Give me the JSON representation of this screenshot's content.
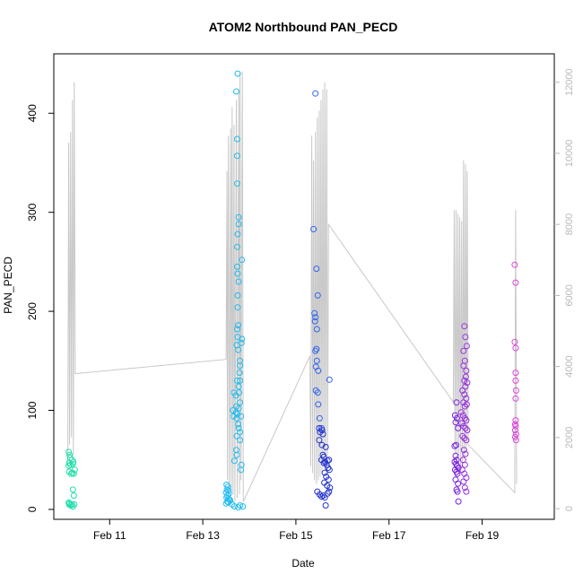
{
  "chart_data": {
    "type": "scatter",
    "title": "ATOM2 Northbound PAN_PECD",
    "xlabel": "Date",
    "ylabel": "PAN_PECD",
    "x_unit": "day (February 2017, fractional)",
    "xlim": [
      9.8,
      20.55
    ],
    "ylim": [
      -10,
      460
    ],
    "y2lim": [
      -300,
      12800
    ],
    "x_ticks": [
      {
        "value": 11,
        "label": "Feb 11"
      },
      {
        "value": 13,
        "label": "Feb 13"
      },
      {
        "value": 15,
        "label": "Feb 15"
      },
      {
        "value": 17,
        "label": "Feb 17"
      },
      {
        "value": 19,
        "label": "Feb 19"
      }
    ],
    "y_ticks": [
      0,
      100,
      200,
      300,
      400
    ],
    "y2_ticks": [
      0,
      2000,
      4000,
      6000,
      8000,
      10000,
      12000
    ],
    "grid": false,
    "legend": "none",
    "colors": {
      "axis": "#000000",
      "secondary_axis": "#b8b8b8",
      "line": "#c8c8c8"
    },
    "series": [
      {
        "color": "#22ddaa",
        "points": [
          [
            10.12,
            58
          ],
          [
            10.14,
            55
          ],
          [
            10.15,
            52
          ],
          [
            10.13,
            47
          ],
          [
            10.16,
            45
          ],
          [
            10.12,
            44
          ],
          [
            10.19,
            50
          ],
          [
            10.22,
            48
          ],
          [
            10.21,
            46
          ],
          [
            10.13,
            38
          ],
          [
            10.17,
            36
          ],
          [
            10.2,
            37
          ],
          [
            10.23,
            36
          ],
          [
            10.25,
            40
          ],
          [
            10.21,
            20
          ],
          [
            10.23,
            14
          ],
          [
            10.12,
            7
          ],
          [
            10.13,
            5
          ],
          [
            10.14,
            6
          ],
          [
            10.16,
            4
          ],
          [
            10.19,
            5
          ],
          [
            10.21,
            3
          ],
          [
            10.24,
            5
          ]
        ]
      },
      {
        "color": "#22bbee",
        "points": [
          [
            13.75,
            440
          ],
          [
            13.72,
            422
          ],
          [
            13.74,
            374
          ],
          [
            13.74,
            357
          ],
          [
            13.74,
            329
          ],
          [
            13.77,
            295
          ],
          [
            13.77,
            288
          ],
          [
            13.75,
            278
          ],
          [
            13.74,
            265
          ],
          [
            13.84,
            252
          ],
          [
            13.74,
            245
          ],
          [
            13.75,
            238
          ],
          [
            13.77,
            230
          ],
          [
            13.75,
            216
          ],
          [
            13.75,
            204
          ],
          [
            13.76,
            186
          ],
          [
            13.74,
            182
          ],
          [
            13.84,
            172
          ],
          [
            13.83,
            168
          ],
          [
            13.75,
            174
          ],
          [
            13.73,
            166
          ],
          [
            13.76,
            161
          ],
          [
            13.8,
            150
          ],
          [
            13.8,
            145
          ],
          [
            13.79,
            138
          ],
          [
            13.8,
            130
          ],
          [
            13.74,
            130
          ],
          [
            13.77,
            124
          ],
          [
            13.67,
            118
          ],
          [
            13.78,
            118
          ],
          [
            13.71,
            115
          ],
          [
            13.72,
            104
          ],
          [
            13.8,
            108
          ],
          [
            13.77,
            102
          ],
          [
            13.65,
            100
          ],
          [
            13.72,
            98
          ],
          [
            13.74,
            96
          ],
          [
            13.66,
            94
          ],
          [
            13.73,
            92
          ],
          [
            13.82,
            94
          ],
          [
            13.76,
            86
          ],
          [
            13.77,
            82
          ],
          [
            13.8,
            78
          ],
          [
            13.73,
            74
          ],
          [
            13.8,
            70
          ],
          [
            13.72,
            60
          ],
          [
            13.73,
            55
          ],
          [
            13.68,
            49
          ],
          [
            13.83,
            45
          ],
          [
            13.82,
            40
          ],
          [
            13.51,
            25
          ],
          [
            13.54,
            23
          ],
          [
            13.52,
            20
          ],
          [
            13.55,
            19
          ],
          [
            13.5,
            17
          ],
          [
            13.56,
            16
          ],
          [
            13.53,
            14
          ],
          [
            13.51,
            12
          ],
          [
            13.55,
            11
          ],
          [
            13.57,
            10
          ],
          [
            13.59,
            9
          ],
          [
            13.53,
            8
          ],
          [
            13.55,
            7
          ],
          [
            13.5,
            6
          ],
          [
            13.63,
            5
          ],
          [
            13.68,
            3
          ],
          [
            13.76,
            2
          ],
          [
            13.8,
            4
          ],
          [
            13.86,
            3
          ]
        ]
      },
      {
        "color": "#3366ee",
        "points": [
          [
            15.42,
            420
          ],
          [
            15.38,
            283
          ],
          [
            15.44,
            243
          ],
          [
            15.47,
            216
          ],
          [
            15.4,
            198
          ],
          [
            15.42,
            194
          ],
          [
            15.41,
            190
          ],
          [
            15.45,
            182
          ],
          [
            15.44,
            162
          ],
          [
            15.42,
            160
          ],
          [
            15.45,
            150
          ],
          [
            15.43,
            144
          ],
          [
            15.48,
            140
          ],
          [
            15.72,
            131
          ],
          [
            15.43,
            120
          ],
          [
            15.47,
            118
          ],
          [
            15.48,
            106
          ],
          [
            15.51,
            92
          ],
          [
            15.55,
            82
          ]
        ]
      },
      {
        "color": "#2233cc",
        "points": [
          [
            15.5,
            82
          ],
          [
            15.56,
            80
          ],
          [
            15.52,
            78
          ],
          [
            15.58,
            76
          ],
          [
            15.5,
            70
          ],
          [
            15.56,
            65
          ],
          [
            15.64,
            63
          ],
          [
            15.58,
            55
          ],
          [
            15.6,
            53
          ],
          [
            15.55,
            50
          ],
          [
            15.6,
            47
          ],
          [
            15.63,
            48
          ],
          [
            15.68,
            49
          ],
          [
            15.71,
            50
          ],
          [
            15.66,
            45
          ],
          [
            15.69,
            42
          ],
          [
            15.72,
            40
          ],
          [
            15.62,
            37
          ],
          [
            15.65,
            33
          ],
          [
            15.7,
            30
          ],
          [
            15.61,
            27
          ],
          [
            15.67,
            24
          ],
          [
            15.73,
            22
          ],
          [
            15.46,
            18
          ],
          [
            15.51,
            15
          ],
          [
            15.55,
            13
          ],
          [
            15.59,
            14
          ],
          [
            15.62,
            12
          ],
          [
            15.68,
            16
          ],
          [
            15.71,
            18
          ],
          [
            15.64,
            4
          ]
        ]
      },
      {
        "color": "#7722dd",
        "points": [
          [
            18.45,
            108
          ],
          [
            18.42,
            95
          ],
          [
            18.46,
            92
          ],
          [
            18.43,
            88
          ],
          [
            18.48,
            82
          ],
          [
            18.44,
            65
          ],
          [
            18.41,
            64
          ],
          [
            18.43,
            54
          ],
          [
            18.45,
            50
          ],
          [
            18.41,
            48
          ],
          [
            18.44,
            46
          ],
          [
            18.46,
            44
          ],
          [
            18.49,
            42
          ],
          [
            18.42,
            40
          ],
          [
            18.45,
            38
          ],
          [
            18.47,
            36
          ],
          [
            18.43,
            30
          ],
          [
            18.48,
            26
          ],
          [
            18.45,
            20
          ],
          [
            18.47,
            18
          ],
          [
            18.49,
            8
          ]
        ]
      },
      {
        "color": "#9933dd",
        "points": [
          [
            18.62,
            185
          ],
          [
            18.64,
            174
          ],
          [
            18.6,
            160
          ],
          [
            18.67,
            165
          ],
          [
            18.63,
            150
          ],
          [
            18.6,
            145
          ],
          [
            18.66,
            140
          ],
          [
            18.65,
            134
          ],
          [
            18.62,
            130
          ],
          [
            18.68,
            128
          ],
          [
            18.64,
            124
          ],
          [
            18.58,
            120
          ],
          [
            18.62,
            116
          ],
          [
            18.66,
            112
          ],
          [
            18.6,
            108
          ],
          [
            18.63,
            104
          ],
          [
            18.67,
            106
          ],
          [
            18.55,
            98
          ],
          [
            18.59,
            95
          ],
          [
            18.63,
            92
          ],
          [
            18.66,
            90
          ],
          [
            18.56,
            87
          ],
          [
            18.6,
            84
          ],
          [
            18.64,
            82
          ],
          [
            18.68,
            80
          ],
          [
            18.58,
            74
          ],
          [
            18.62,
            72
          ],
          [
            18.66,
            70
          ],
          [
            18.61,
            60
          ],
          [
            18.64,
            56
          ],
          [
            18.59,
            50
          ],
          [
            18.63,
            45
          ],
          [
            18.57,
            40
          ],
          [
            18.62,
            36
          ],
          [
            18.66,
            32
          ],
          [
            18.6,
            28
          ],
          [
            18.63,
            22
          ],
          [
            18.66,
            18
          ]
        ]
      },
      {
        "color": "#dd44dd",
        "points": [
          [
            19.7,
            247
          ],
          [
            19.72,
            229
          ],
          [
            19.7,
            169
          ],
          [
            19.72,
            163
          ],
          [
            19.72,
            138
          ],
          [
            19.72,
            130
          ],
          [
            19.73,
            120
          ],
          [
            19.72,
            112
          ],
          [
            19.72,
            90
          ],
          [
            19.71,
            86
          ],
          [
            19.72,
            84
          ],
          [
            19.71,
            80
          ],
          [
            19.73,
            76
          ],
          [
            19.71,
            73
          ],
          [
            19.73,
            70
          ]
        ]
      }
    ],
    "secondary_line": {
      "name": "secondary axis trace",
      "points": [
        [
          10.1,
          1200
        ],
        [
          10.12,
          10300
        ],
        [
          10.14,
          1800
        ],
        [
          10.16,
          10600
        ],
        [
          10.18,
          2000
        ],
        [
          10.2,
          11500
        ],
        [
          10.22,
          1500
        ],
        [
          10.24,
          12000
        ],
        [
          10.26,
          3800
        ],
        [
          13.5,
          4200
        ],
        [
          13.52,
          9500
        ],
        [
          13.53,
          800
        ],
        [
          13.55,
          10500
        ],
        [
          13.57,
          600
        ],
        [
          13.6,
          10700
        ],
        [
          13.61,
          500
        ],
        [
          13.63,
          11300
        ],
        [
          13.65,
          400
        ],
        [
          13.67,
          10800
        ],
        [
          13.69,
          200
        ],
        [
          13.72,
          11500
        ],
        [
          13.74,
          300
        ],
        [
          13.77,
          11800
        ],
        [
          13.79,
          400
        ],
        [
          13.8,
          12300
        ],
        [
          13.82,
          800
        ],
        [
          13.85,
          12300
        ],
        [
          13.87,
          200
        ],
        [
          15.3,
          4300
        ],
        [
          15.32,
          1200
        ],
        [
          15.34,
          10500
        ],
        [
          15.36,
          1000
        ],
        [
          15.38,
          9800
        ],
        [
          15.4,
          800
        ],
        [
          15.42,
          10600
        ],
        [
          15.44,
          700
        ],
        [
          15.46,
          11000
        ],
        [
          15.48,
          800
        ],
        [
          15.5,
          11200
        ],
        [
          15.52,
          900
        ],
        [
          15.54,
          11500
        ],
        [
          15.56,
          1000
        ],
        [
          15.58,
          11800
        ],
        [
          15.6,
          1200
        ],
        [
          15.62,
          12000
        ],
        [
          15.64,
          1000
        ],
        [
          15.66,
          11800
        ],
        [
          15.68,
          1500
        ],
        [
          15.7,
          8000
        ],
        [
          18.38,
          3000
        ],
        [
          18.4,
          8400
        ],
        [
          18.42,
          1500
        ],
        [
          18.44,
          8400
        ],
        [
          18.46,
          1300
        ],
        [
          18.48,
          8300
        ],
        [
          18.5,
          1500
        ],
        [
          18.52,
          8200
        ],
        [
          18.54,
          1000
        ],
        [
          18.56,
          8100
        ],
        [
          18.58,
          1200
        ],
        [
          18.6,
          9800
        ],
        [
          18.62,
          1400
        ],
        [
          18.64,
          9700
        ],
        [
          18.66,
          1600
        ],
        [
          18.68,
          9500
        ],
        [
          18.7,
          1800
        ],
        [
          19.7,
          450
        ],
        [
          19.72,
          8400
        ],
        [
          19.74,
          700
        ]
      ]
    }
  }
}
